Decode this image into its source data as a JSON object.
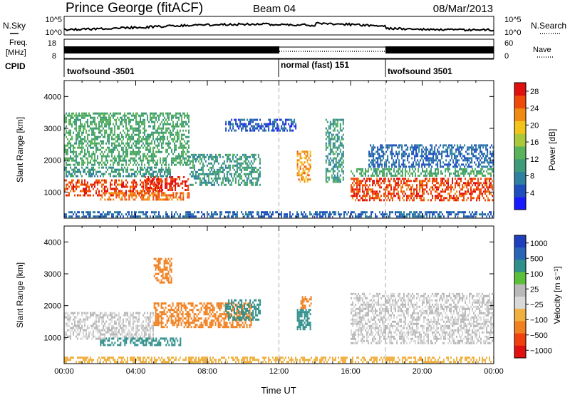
{
  "header": {
    "station": "Prince George (fitACF)",
    "beam": "Beam 04",
    "date": "08/Mar/2013"
  },
  "noise_panel": {
    "left_label": "N.Sky",
    "left_ticks": [
      "10^5",
      "10^0"
    ],
    "right_ticks": [
      "10^5",
      "10^0"
    ],
    "right_label": "N.Search"
  },
  "freq_panel": {
    "left_label_1": "Freq.",
    "left_label_2": "[MHz]",
    "left_ticks": [
      "18",
      "8"
    ],
    "right_ticks": [
      "60",
      "0"
    ],
    "right_label": "Nave"
  },
  "cpid_panel": {
    "label": "CPID",
    "segments": [
      {
        "name": "twofsound -3501",
        "start_hour": 0,
        "end_hour": 12
      },
      {
        "name": "normal (fast) 151",
        "start_hour": 12,
        "end_hour": 18
      },
      {
        "name": "twofsound 3501",
        "start_hour": 18,
        "end_hour": 24
      }
    ]
  },
  "colors": {
    "power_scale": [
      "#1a1aff",
      "#1f4fbf",
      "#2e7fa0",
      "#3d9b7a",
      "#58b35a",
      "#a9c83a",
      "#f2c419",
      "#f08a10",
      "#f04a0a",
      "#e01010"
    ],
    "velocity_scale": [
      "#1f3fbf",
      "#2a66b8",
      "#2f8f8a",
      "#5bbf3a",
      "#b9b9b9",
      "#d9d9d9",
      "#f0b040",
      "#f08020",
      "#f04010",
      "#e01010"
    ]
  },
  "chart_data": [
    {
      "type": "heatmap",
      "title": "",
      "xlabel": "",
      "ylabel": "Slant Range [km]",
      "x_range": [
        0,
        24
      ],
      "ylim": [
        180,
        4500
      ],
      "x_ticks": [
        "00:00",
        "04:00",
        "08:00",
        "12:00",
        "16:00",
        "20:00",
        "00:00"
      ],
      "y_ticks": [
        "1000",
        "2000",
        "3000",
        "4000"
      ],
      "colorbar_label": "Power [dB]",
      "colorbar_ticks": [
        "4",
        "8",
        "12",
        "16",
        "20",
        "24",
        "28"
      ],
      "colorbar_range": [
        0,
        30
      ],
      "regions": [
        {
          "x": [
            0,
            5.5
          ],
          "y": [
            850,
            1400
          ],
          "value": 26
        },
        {
          "x": [
            4.5,
            7
          ],
          "y": [
            1000,
            1500
          ],
          "value": 27
        },
        {
          "x": [
            2,
            7
          ],
          "y": [
            700,
            1000
          ],
          "value": 24
        },
        {
          "x": [
            0,
            6
          ],
          "y": [
            1450,
            1800
          ],
          "value": 10
        },
        {
          "x": [
            0,
            7
          ],
          "y": [
            1800,
            3500
          ],
          "value": 12
        },
        {
          "x": [
            7,
            11
          ],
          "y": [
            1200,
            2200
          ],
          "value": 10
        },
        {
          "x": [
            9,
            13
          ],
          "y": [
            2900,
            3300
          ],
          "value": 5
        },
        {
          "x": [
            13,
            13.8
          ],
          "y": [
            1300,
            2300
          ],
          "value": 22
        },
        {
          "x": [
            14.6,
            15.6
          ],
          "y": [
            1300,
            3300
          ],
          "value": 10
        },
        {
          "x": [
            16,
            24
          ],
          "y": [
            700,
            1450
          ],
          "value": 26
        },
        {
          "x": [
            16,
            24
          ],
          "y": [
            1450,
            1750
          ],
          "value": 12
        },
        {
          "x": [
            17,
            24
          ],
          "y": [
            1750,
            2500
          ],
          "value": 6
        },
        {
          "x": [
            0,
            24
          ],
          "y": [
            180,
            400
          ],
          "value": 6
        }
      ]
    },
    {
      "type": "heatmap",
      "title": "",
      "xlabel": "Time UT",
      "ylabel": "Slant Range [km]",
      "x_range": [
        0,
        24
      ],
      "ylim": [
        180,
        4500
      ],
      "x_ticks": [
        "00:00",
        "04:00",
        "08:00",
        "12:00",
        "16:00",
        "20:00",
        "00:00"
      ],
      "y_ticks": [
        "1000",
        "2000",
        "3000",
        "4000"
      ],
      "colorbar_label": "Velocity [m s⁻¹]",
      "colorbar_ticks": [
        "1000",
        "500",
        "100",
        "25",
        "−25",
        "−100",
        "−500",
        "−1000"
      ],
      "regions": [
        {
          "x": [
            0,
            5
          ],
          "y": [
            900,
            1800
          ],
          "value": 0
        },
        {
          "x": [
            2,
            6.5
          ],
          "y": [
            750,
            1000
          ],
          "value": 150
        },
        {
          "x": [
            5,
            10.5
          ],
          "y": [
            1300,
            2100
          ],
          "value": -300
        },
        {
          "x": [
            5,
            6
          ],
          "y": [
            2700,
            3500
          ],
          "value": -250
        },
        {
          "x": [
            9,
            11
          ],
          "y": [
            1500,
            2200
          ],
          "value": 150
        },
        {
          "x": [
            13,
            13.8
          ],
          "y": [
            1200,
            1900
          ],
          "value": 400
        },
        {
          "x": [
            13.2,
            13.8
          ],
          "y": [
            1900,
            2300
          ],
          "value": -300
        },
        {
          "x": [
            16,
            24
          ],
          "y": [
            800,
            2400
          ],
          "value": 0
        },
        {
          "x": [
            0,
            24
          ],
          "y": [
            180,
            400
          ],
          "value": -50
        }
      ]
    }
  ]
}
